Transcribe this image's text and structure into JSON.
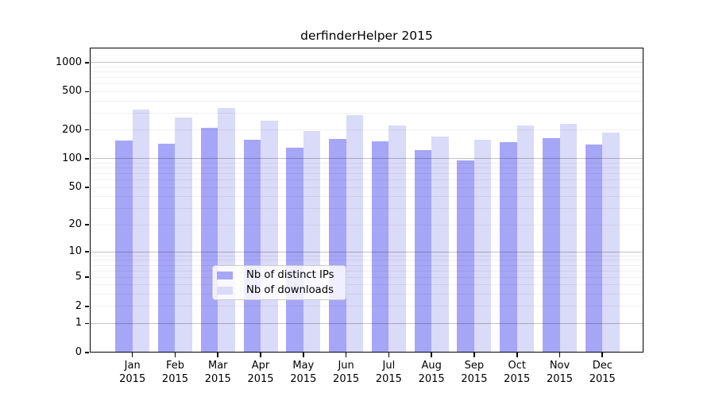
{
  "title": "derfinderHelper 2015",
  "chart_data": {
    "type": "bar",
    "title": "derfinderHelper 2015",
    "categories": [
      "Jan",
      "Feb",
      "Mar",
      "Apr",
      "May",
      "Jun",
      "Jul",
      "Aug",
      "Sep",
      "Oct",
      "Nov",
      "Dec"
    ],
    "category_year": "2015",
    "series": [
      {
        "name": "Nb of distinct IPs",
        "color": "#a6a6f7",
        "values": [
          154,
          143,
          210,
          159,
          131,
          160,
          153,
          123,
          96,
          150,
          163,
          142
        ]
      },
      {
        "name": "Nb of downloads",
        "color": "#dadaf9",
        "values": [
          327,
          267,
          336,
          248,
          193,
          285,
          224,
          170,
          158,
          221,
          232,
          187
        ]
      }
    ],
    "yscale": "log1p",
    "yticks": [
      0,
      1,
      2,
      5,
      10,
      20,
      50,
      100,
      200,
      500,
      1000
    ],
    "ylim": [
      0,
      1400
    ],
    "xlabel": "",
    "ylabel": "",
    "grid": "horizontal",
    "legend_position": "inside-bottom-center"
  }
}
